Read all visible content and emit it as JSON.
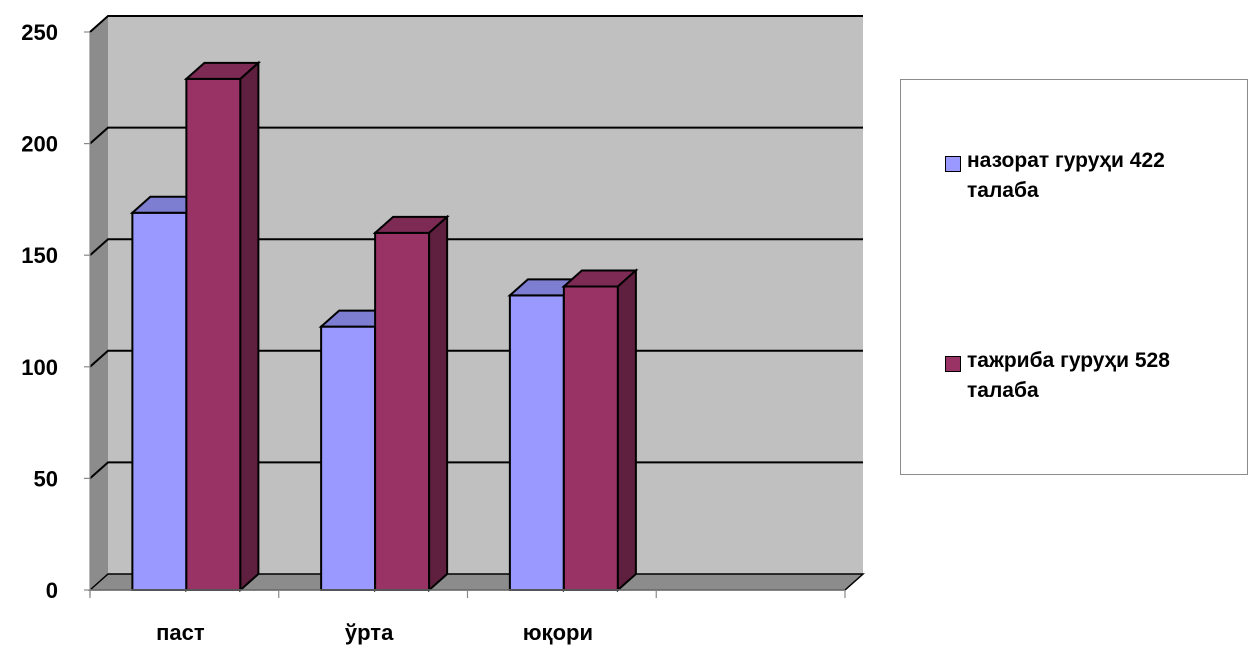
{
  "chart_data": {
    "type": "bar",
    "categories": [
      "паст",
      "ўрта",
      "юқори",
      ""
    ],
    "series": [
      {
        "name": "назорат гуруҳи 422 талаба",
        "color": "#9999ff",
        "values": [
          169,
          118,
          132,
          null
        ]
      },
      {
        "name": "тажриба гуруҳи 528 талаба",
        "color": "#993366",
        "values": [
          229,
          160,
          136,
          null
        ]
      }
    ],
    "yticks": [
      "0",
      "50",
      "100",
      "150",
      "200",
      "250"
    ],
    "ylim": [
      0,
      250
    ],
    "grid": true,
    "legend": "right",
    "plot_background": "#c0c0c0"
  }
}
